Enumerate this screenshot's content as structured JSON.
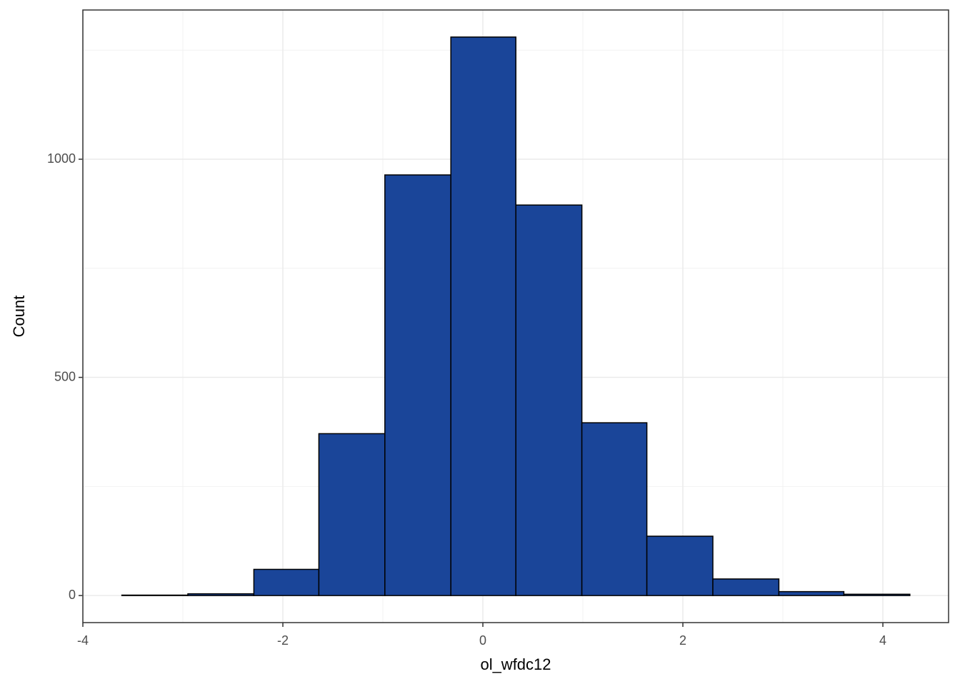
{
  "chart_data": {
    "type": "histogram",
    "x_label": "ol_wfdc12",
    "y_label": "Count",
    "bins": [
      -3.61,
      -2.95,
      -2.29,
      -1.64,
      -0.98,
      -0.32,
      0.33,
      0.99,
      1.64,
      2.3,
      2.96,
      3.61,
      4.27
    ],
    "values": [
      1,
      4,
      60,
      371,
      964,
      1280,
      895,
      396,
      136,
      38,
      9,
      3
    ],
    "color": "#1a4599",
    "edge_color": "#000000",
    "xlim": [
      -4,
      4.657
    ],
    "ylim": [
      -62,
      1342
    ],
    "xticks": [
      -4,
      -2,
      0,
      2,
      4
    ],
    "yticks": [
      0,
      500,
      1000
    ],
    "x_minor_grid": [
      -3,
      -1,
      1,
      3
    ],
    "y_minor_grid": [
      250,
      750,
      1250
    ],
    "grid": true
  }
}
